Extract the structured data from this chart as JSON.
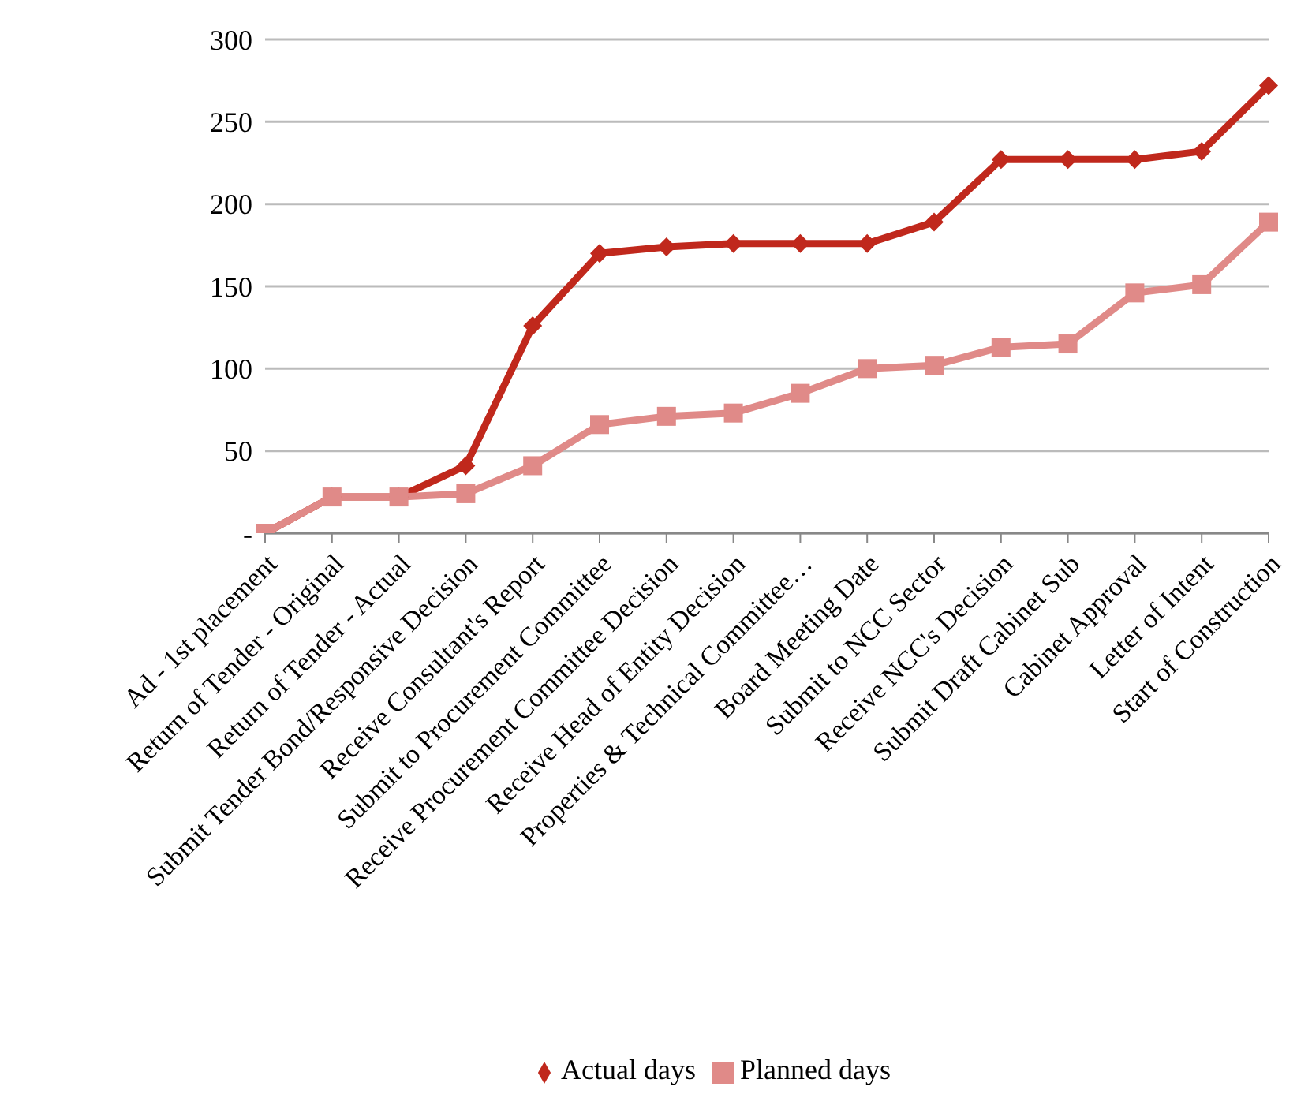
{
  "chart_data": {
    "type": "line",
    "categories": [
      "Ad - 1st placement",
      "Return of Tender - Original",
      "Return of Tender - Actual",
      "Submit Tender Bond/Responsive Decision",
      "Receive Consultant's Report",
      "Submit to Procurement Committee",
      "Receive Procurement Committee  Decision",
      "Receive Head of Entity Decision",
      "Properties & Technical Committee…",
      "Board Meeting Date",
      "Submit to NCC Sector",
      "Receive NCC's Decision",
      "Submit Draft Cabinet Sub",
      "Cabinet Approval",
      "Letter of Intent",
      "Start of Construction"
    ],
    "series": [
      {
        "name": "Actual days",
        "color": "#c0281c",
        "marker": "diamond",
        "values": [
          0,
          22,
          22,
          41,
          126,
          170,
          174,
          176,
          176,
          176,
          189,
          227,
          227,
          227,
          232,
          272
        ]
      },
      {
        "name": "Planned days",
        "color": "#e08a88",
        "marker": "square",
        "values": [
          0,
          22,
          22,
          24,
          41,
          66,
          71,
          73,
          85,
          100,
          102,
          113,
          115,
          146,
          151,
          189
        ]
      }
    ],
    "ylim": [
      0,
      300
    ],
    "yticks": [
      {
        "value": 0,
        "label": "-"
      },
      50,
      100,
      150,
      200,
      250,
      300
    ],
    "grid": "y",
    "legend": "bottom",
    "line_style": "solid"
  }
}
